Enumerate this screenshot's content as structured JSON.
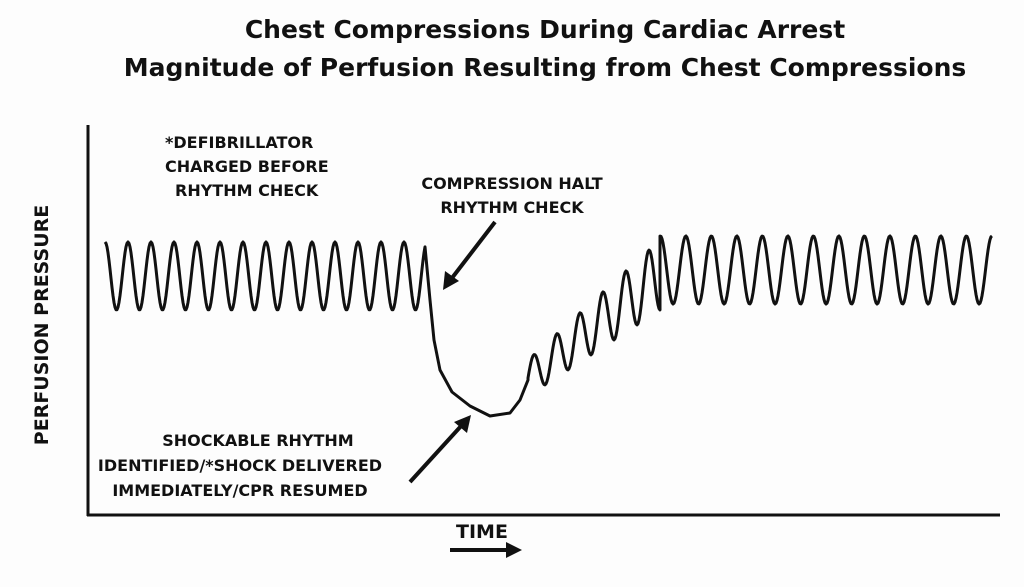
{
  "header": {
    "title_lines": [
      "Chest Compressions During Cardiac Arrest",
      "Magnitude of Perfusion Resulting from Chest Compressions"
    ]
  },
  "annotations": {
    "defibrillator": [
      "*DEFIBRILLATOR",
      "CHARGED BEFORE",
      "RHYTHM CHECK"
    ],
    "halt": [
      "COMPRESSION HALT",
      "RHYTHM CHECK"
    ],
    "shock": [
      "SHOCKABLE RHYTHM",
      "IDENTIFIED/*SHOCK DELIVERED",
      "IMMEDIATELY/CPR RESUMED"
    ]
  },
  "axes": {
    "y_label": "PERFUSION PRESSURE",
    "x_label": "TIME"
  }
}
